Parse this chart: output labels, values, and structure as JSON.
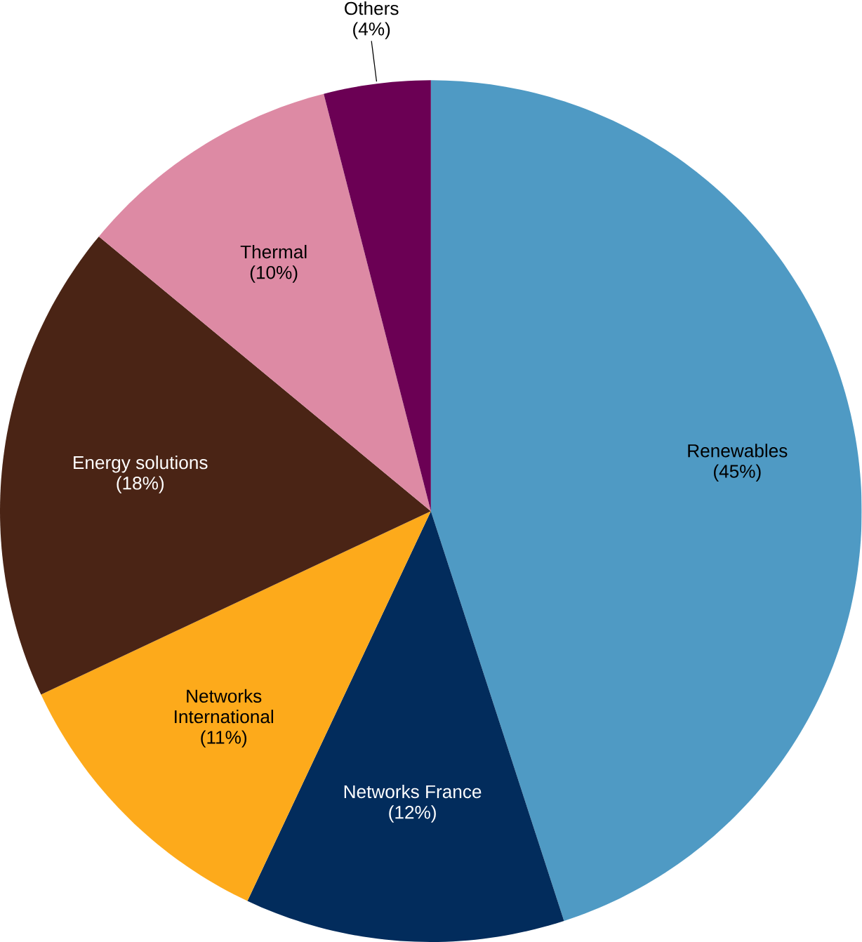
{
  "chart_data": {
    "type": "pie",
    "categories": [
      "Renewables",
      "Networks France",
      "Networks International",
      "Energy solutions",
      "Thermal",
      "Others"
    ],
    "values": [
      45,
      12,
      11,
      18,
      10,
      4
    ],
    "value_labels": [
      "(45%)",
      "(12%)",
      "(11%)",
      "(18%)",
      "(10%)",
      "(4%)"
    ],
    "colors": [
      "#4f9ac4",
      "#022c5c",
      "#fdaa1b",
      "#4a2415",
      "#dd8aa4",
      "#6b0054"
    ]
  }
}
